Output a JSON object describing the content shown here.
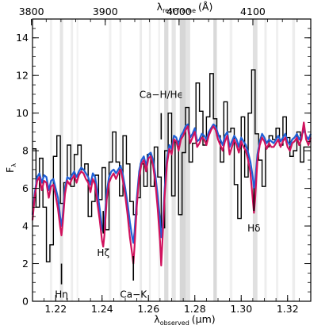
{
  "chart_data": {
    "type": "line",
    "xlabel": "λ",
    "xlabel_sub": "observed",
    "xlabel_unit": "(μm)",
    "toplabel": "λ",
    "toplabel_sub": "rest-frame",
    "toplabel_unit": "(Å)",
    "ylabel": "F",
    "ylabel_sub": "λ",
    "xlim": [
      1.21,
      1.33
    ],
    "ylim": [
      0,
      15
    ],
    "x_ticks": [
      "1.22",
      "1.24",
      "1.26",
      "1.28",
      "1.30",
      "1.32"
    ],
    "y_ticks": [
      "0",
      "2",
      "4",
      "6",
      "8",
      "10",
      "12",
      "14"
    ],
    "top_ticks": [
      "3800",
      "3900",
      "4000",
      "4100"
    ],
    "redshift_factor": 3.183,
    "colors": {
      "data": "#000000",
      "model_blue": "#1f5fd6",
      "model_magenta": "#d0125d"
    },
    "line_labels": [
      {
        "text": "Hη",
        "x": 1.2225,
        "marker_y": [
          0.9,
          2.0
        ]
      },
      {
        "text": "Hζ",
        "x": 1.2405,
        "marker_y": [
          3.6,
          4.8
        ]
      },
      {
        "text": "Ca−K",
        "x": 1.2535,
        "marker_y": [
          1.1,
          2.4
        ]
      },
      {
        "text": "Ca−H/Hϵ",
        "x": 1.2655,
        "marker_y": [
          8.6,
          10.0
        ]
      },
      {
        "text": "Hδ",
        "x": 1.3055,
        "marker_y": [
          4.8,
          6.0
        ]
      }
    ],
    "sky_bands": [
      [
        1.2175,
        1.2185,
        0.06
      ],
      [
        1.2218,
        1.2232,
        0.1
      ],
      [
        1.2265,
        1.2275,
        0.07
      ],
      [
        1.229,
        1.2298,
        0.05
      ],
      [
        1.243,
        1.244,
        0.06
      ],
      [
        1.2475,
        1.2485,
        0.05
      ],
      [
        1.2562,
        1.2572,
        0.08
      ],
      [
        1.2602,
        1.261,
        0.07
      ],
      [
        1.2642,
        1.265,
        0.06
      ],
      [
        1.2668,
        1.2686,
        0.14
      ],
      [
        1.27,
        1.2718,
        0.1
      ],
      [
        1.2735,
        1.276,
        0.16
      ],
      [
        1.276,
        1.278,
        0.11
      ],
      [
        1.288,
        1.2895,
        0.15
      ],
      [
        1.295,
        1.2962,
        0.06
      ],
      [
        1.305,
        1.307,
        0.12
      ],
      [
        1.31,
        1.311,
        0.07
      ],
      [
        1.315,
        1.316,
        0.06
      ],
      [
        1.322,
        1.3232,
        0.07
      ]
    ],
    "series": [
      {
        "kind": "data-step",
        "x": [
          1.21,
          1.2115,
          1.213,
          1.2145,
          1.216,
          1.2175,
          1.219,
          1.2205,
          1.222,
          1.2235,
          1.225,
          1.2265,
          1.228,
          1.2295,
          1.231,
          1.2325,
          1.234,
          1.2355,
          1.237,
          1.2385,
          1.24,
          1.2415,
          1.243,
          1.2445,
          1.246,
          1.2475,
          1.249,
          1.2505,
          1.252,
          1.2535,
          1.255,
          1.2565,
          1.258,
          1.2595,
          1.261,
          1.2625,
          1.264,
          1.2655,
          1.267,
          1.2685,
          1.27,
          1.2715,
          1.273,
          1.2745,
          1.276,
          1.2775,
          1.279,
          1.2805,
          1.282,
          1.2835,
          1.285,
          1.2865,
          1.288,
          1.2895,
          1.291,
          1.2925,
          1.294,
          1.2955,
          1.297,
          1.2985,
          1.3,
          1.3015,
          1.303,
          1.3045,
          1.306,
          1.3075,
          1.309,
          1.3105,
          1.312,
          1.3135,
          1.315,
          1.3165,
          1.318,
          1.3195,
          1.321,
          1.3225,
          1.324,
          1.3255,
          1.327,
          1.3285
        ],
        "values": [
          8.1,
          5.0,
          7.6,
          5.0,
          2.1,
          3.0,
          7.7,
          8.8,
          5.2,
          6.3,
          8.3,
          6.1,
          7.8,
          8.3,
          7.0,
          7.3,
          4.5,
          5.3,
          6.7,
          5.4,
          7.1,
          3.8,
          7.4,
          9.0,
          7.4,
          5.6,
          8.8,
          7.3,
          5.3,
          4.6,
          5.5,
          7.3,
          6.1,
          7.8,
          6.1,
          8.2,
          6.6,
          3.9,
          8.0,
          10.0,
          5.6,
          8.5,
          4.6,
          7.9,
          10.3,
          7.4,
          8.4,
          11.6,
          10.1,
          8.3,
          9.8,
          12.1,
          9.7,
          8.8,
          7.4,
          10.6,
          9.0,
          9.2,
          6.2,
          4.4,
          9.8,
          6.6,
          10.0,
          12.3,
          8.9,
          7.5,
          6.1,
          8.2,
          8.8,
          8.6,
          9.2,
          8.3,
          9.8,
          8.7,
          7.7,
          8.0,
          9.0,
          7.4,
          8.2,
          8.2
        ]
      },
      {
        "kind": "model",
        "color": "#1f5fd6",
        "x": [
          1.21,
          1.211,
          1.212,
          1.213,
          1.214,
          1.215,
          1.216,
          1.217,
          1.218,
          1.219,
          1.22,
          1.221,
          1.222,
          1.2225,
          1.223,
          1.224,
          1.225,
          1.226,
          1.227,
          1.228,
          1.229,
          1.23,
          1.231,
          1.232,
          1.233,
          1.234,
          1.235,
          1.236,
          1.237,
          1.238,
          1.239,
          1.24,
          1.2405,
          1.241,
          1.242,
          1.243,
          1.244,
          1.245,
          1.246,
          1.247,
          1.248,
          1.249,
          1.25,
          1.251,
          1.252,
          1.253,
          1.2535,
          1.254,
          1.255,
          1.256,
          1.257,
          1.258,
          1.259,
          1.26,
          1.261,
          1.262,
          1.263,
          1.264,
          1.265,
          1.2655,
          1.266,
          1.267,
          1.268,
          1.269,
          1.27,
          1.271,
          1.272,
          1.273,
          1.274,
          1.275,
          1.276,
          1.277,
          1.278,
          1.279,
          1.28,
          1.281,
          1.282,
          1.283,
          1.284,
          1.285,
          1.286,
          1.287,
          1.288,
          1.289,
          1.29,
          1.291,
          1.292,
          1.293,
          1.294,
          1.295,
          1.296,
          1.297,
          1.298,
          1.299,
          1.3,
          1.301,
          1.302,
          1.303,
          1.304,
          1.305,
          1.3055,
          1.306,
          1.307,
          1.308,
          1.309,
          1.31,
          1.311,
          1.312,
          1.313,
          1.314,
          1.315,
          1.316,
          1.317,
          1.318,
          1.319,
          1.32,
          1.321,
          1.322,
          1.323,
          1.324,
          1.325,
          1.326,
          1.327,
          1.328,
          1.329,
          1.33
        ],
        "values": [
          4.6,
          5.8,
          6.6,
          6.8,
          6.3,
          6.7,
          6.6,
          5.9,
          6.4,
          6.5,
          6.0,
          5.5,
          4.4,
          4.0,
          4.5,
          6.0,
          6.6,
          6.5,
          6.7,
          6.9,
          6.6,
          6.9,
          7.1,
          7.0,
          6.8,
          6.6,
          6.2,
          6.8,
          6.6,
          5.8,
          4.9,
          3.9,
          3.7,
          4.2,
          5.8,
          6.6,
          6.9,
          7.0,
          6.8,
          7.0,
          7.2,
          6.7,
          6.0,
          5.2,
          4.2,
          3.4,
          3.1,
          3.7,
          5.5,
          6.9,
          7.5,
          7.7,
          7.2,
          7.8,
          7.9,
          7.5,
          6.7,
          5.6,
          4.3,
          3.4,
          3.8,
          6.0,
          7.6,
          8.3,
          8.1,
          8.8,
          8.7,
          8.3,
          8.8,
          9.0,
          9.3,
          9.4,
          8.7,
          8.9,
          9.2,
          8.5,
          8.6,
          8.9,
          8.8,
          8.6,
          9.0,
          9.2,
          9.4,
          9.3,
          8.9,
          8.6,
          8.3,
          8.8,
          9.0,
          8.2,
          8.5,
          8.8,
          8.6,
          8.2,
          8.7,
          8.5,
          8.3,
          7.9,
          7.4,
          6.6,
          6.0,
          6.4,
          7.8,
          8.5,
          8.9,
          8.7,
          8.4,
          8.6,
          8.5,
          8.4,
          8.6,
          8.8,
          8.5,
          8.7,
          8.9,
          8.5,
          8.3,
          8.6,
          8.7,
          8.9,
          8.6,
          8.8,
          9.1,
          8.8,
          8.6,
          8.9
        ]
      },
      {
        "kind": "model",
        "color": "#d0125d",
        "x": [
          1.21,
          1.211,
          1.212,
          1.213,
          1.214,
          1.215,
          1.216,
          1.217,
          1.218,
          1.219,
          1.22,
          1.221,
          1.222,
          1.2225,
          1.223,
          1.224,
          1.225,
          1.226,
          1.227,
          1.228,
          1.229,
          1.23,
          1.231,
          1.232,
          1.233,
          1.234,
          1.235,
          1.236,
          1.237,
          1.238,
          1.239,
          1.24,
          1.2405,
          1.241,
          1.242,
          1.243,
          1.244,
          1.245,
          1.246,
          1.247,
          1.248,
          1.249,
          1.25,
          1.251,
          1.252,
          1.253,
          1.2535,
          1.254,
          1.255,
          1.256,
          1.257,
          1.258,
          1.259,
          1.26,
          1.261,
          1.262,
          1.263,
          1.264,
          1.265,
          1.2655,
          1.266,
          1.267,
          1.268,
          1.269,
          1.27,
          1.271,
          1.272,
          1.273,
          1.274,
          1.275,
          1.276,
          1.277,
          1.278,
          1.279,
          1.28,
          1.281,
          1.282,
          1.283,
          1.284,
          1.285,
          1.286,
          1.287,
          1.288,
          1.289,
          1.29,
          1.291,
          1.292,
          1.293,
          1.294,
          1.295,
          1.296,
          1.297,
          1.298,
          1.299,
          1.3,
          1.301,
          1.302,
          1.303,
          1.304,
          1.305,
          1.3055,
          1.306,
          1.307,
          1.308,
          1.309,
          1.31,
          1.311,
          1.312,
          1.313,
          1.314,
          1.315,
          1.316,
          1.317,
          1.318,
          1.319,
          1.32,
          1.321,
          1.322,
          1.323,
          1.324,
          1.325,
          1.326,
          1.327,
          1.328,
          1.329,
          1.33
        ],
        "values": [
          4.3,
          5.6,
          6.4,
          6.6,
          5.9,
          6.4,
          6.3,
          5.5,
          6.1,
          6.2,
          5.6,
          4.9,
          3.9,
          3.5,
          4.1,
          5.7,
          6.4,
          6.2,
          6.5,
          6.7,
          6.3,
          6.7,
          6.9,
          6.8,
          6.5,
          6.3,
          5.8,
          6.5,
          6.2,
          5.2,
          4.3,
          3.2,
          2.9,
          3.5,
          5.4,
          6.3,
          6.6,
          6.8,
          6.5,
          6.8,
          7.0,
          6.4,
          5.6,
          4.6,
          3.4,
          2.5,
          2.0,
          2.9,
          5.1,
          6.6,
          7.3,
          7.5,
          6.9,
          7.6,
          7.7,
          7.2,
          6.3,
          4.9,
          3.2,
          1.9,
          3.1,
          5.6,
          7.3,
          8.1,
          7.8,
          8.6,
          8.5,
          8.0,
          8.6,
          8.8,
          9.1,
          9.3,
          8.4,
          8.7,
          9.0,
          8.2,
          8.4,
          8.7,
          8.6,
          8.3,
          8.8,
          9.1,
          9.3,
          9.1,
          8.6,
          8.3,
          8.0,
          8.5,
          8.8,
          7.8,
          8.2,
          8.6,
          8.3,
          7.9,
          8.5,
          8.2,
          8.0,
          7.5,
          6.8,
          5.4,
          4.7,
          5.4,
          7.5,
          8.3,
          8.7,
          8.5,
          8.1,
          8.4,
          8.2,
          8.2,
          8.4,
          8.6,
          8.2,
          8.5,
          8.7,
          8.2,
          8.0,
          8.4,
          8.5,
          8.7,
          8.3,
          8.6,
          9.5,
          8.6,
          8.3,
          8.7
        ]
      }
    ]
  }
}
